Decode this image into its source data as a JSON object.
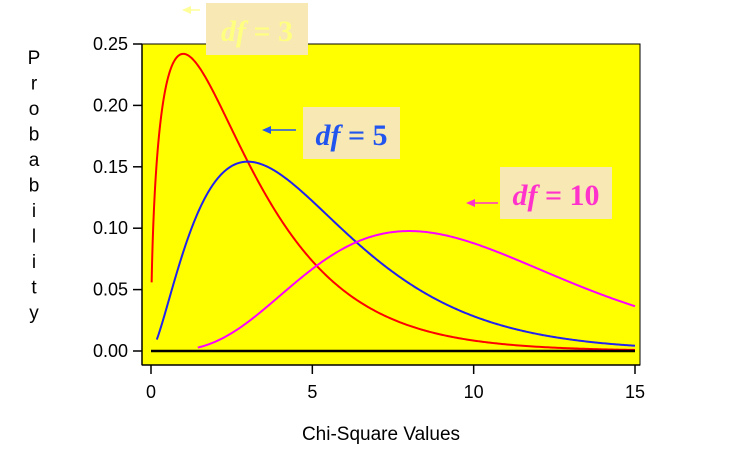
{
  "chart_data": {
    "type": "line",
    "title": "",
    "xlabel": "Chi-Square Values",
    "ylabel": "Probability",
    "xlim": [
      0,
      15
    ],
    "ylim": [
      0,
      0.25
    ],
    "x_ticks": [
      "0",
      "5",
      "10",
      "15"
    ],
    "y_ticks": [
      "0.00",
      "0.05",
      "0.10",
      "0.15",
      "0.20",
      "0.25"
    ],
    "plot_background": "#ffff00",
    "grid": false,
    "series": [
      {
        "name": "df = 3",
        "df": 3,
        "color": "#ff0000",
        "label_color": "#ffff80"
      },
      {
        "name": "df = 5",
        "df": 5,
        "color": "#2222ee",
        "label_color": "#2255ee"
      },
      {
        "name": "df = 10",
        "df": 10,
        "color": "#ff00ff",
        "label_color": "#ff33cc"
      }
    ],
    "annotations": [
      {
        "text_prefix": "df",
        "text_suffix": " = 3",
        "series": 0
      },
      {
        "text_prefix": "df",
        "text_suffix": " = 5",
        "series": 1
      },
      {
        "text_prefix": "df",
        "text_suffix": " = 10",
        "series": 2
      }
    ]
  }
}
